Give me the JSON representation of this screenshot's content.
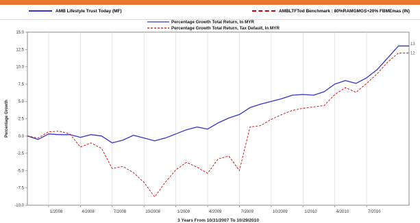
{
  "header": {
    "legend": [
      {
        "label": "AMB Lifestyle Trust Today (MF)",
        "color": "#3333cc"
      },
      {
        "label": "AMBLTFTod Benchmark : 80%RAMGMGS+20% FBMEmas (IN)",
        "color": "#cc0000"
      }
    ]
  },
  "chart_data": {
    "type": "line",
    "title": "",
    "xlabel": "3 Years From 10/31/2007 To 10/29/2010",
    "ylabel": "Percentage Growth",
    "ylim": [
      -10,
      15
    ],
    "yticks": [
      "15.0",
      "12.5",
      "10.0",
      "7.5",
      "5.0",
      "2.5",
      "0.0",
      "-2.5",
      "-5.0",
      "-7.5",
      "-10.0"
    ],
    "xticks": [
      "1/2008",
      "4/2008",
      "7/2008",
      "10/2008",
      "1/2009",
      "4/2009",
      "7/2009",
      "10/2009",
      "1/2010",
      "4/2010",
      "7/2010"
    ],
    "xlim": [
      0,
      36
    ],
    "grid": "vertical",
    "legend_position": "top",
    "end_labels": [
      "13",
      "12"
    ],
    "series": [
      {
        "name": "Percentage Growth Total Return, In MYR",
        "color": "#3333cc",
        "dash": "solid",
        "x": [
          0,
          1,
          2,
          3,
          4,
          5,
          6,
          7,
          8,
          9,
          10,
          11,
          12,
          13,
          14,
          15,
          16,
          17,
          18,
          19,
          20,
          21,
          22,
          23,
          24,
          25,
          26,
          27,
          28,
          29,
          30,
          31,
          32,
          33,
          34,
          35,
          36
        ],
        "y": [
          0.0,
          -0.5,
          0.3,
          0.2,
          0.2,
          -0.2,
          0.2,
          0.0,
          -1.0,
          -0.6,
          0.1,
          -0.3,
          -0.7,
          -0.3,
          0.3,
          0.9,
          1.3,
          1.0,
          1.9,
          2.6,
          3.1,
          4.1,
          4.6,
          5.0,
          5.4,
          5.9,
          6.0,
          5.9,
          6.4,
          7.5,
          8.0,
          7.6,
          8.4,
          9.6,
          11.3,
          13.0,
          13.0
        ]
      },
      {
        "name": "Percentage Growth Total Return, Tax Default, In MYR",
        "color": "#cc0000",
        "dash": "dashed",
        "x": [
          0,
          1,
          2,
          3,
          4,
          5,
          6,
          7,
          8,
          9,
          10,
          11,
          12,
          13,
          14,
          15,
          16,
          17,
          18,
          19,
          20,
          21,
          22,
          23,
          24,
          25,
          26,
          27,
          28,
          29,
          30,
          31,
          32,
          33,
          34,
          35,
          36
        ],
        "y": [
          0.0,
          -0.3,
          0.6,
          0.7,
          0.3,
          -1.6,
          -1.0,
          -1.8,
          -4.7,
          -4.4,
          -5.3,
          -6.7,
          -8.8,
          -6.7,
          -4.9,
          -3.8,
          -4.5,
          -5.4,
          -3.3,
          -2.9,
          -5.0,
          1.3,
          1.5,
          2.4,
          3.1,
          3.7,
          4.0,
          4.2,
          4.4,
          6.0,
          7.0,
          6.3,
          7.6,
          9.0,
          10.7,
          12.0,
          12.0
        ]
      }
    ]
  }
}
